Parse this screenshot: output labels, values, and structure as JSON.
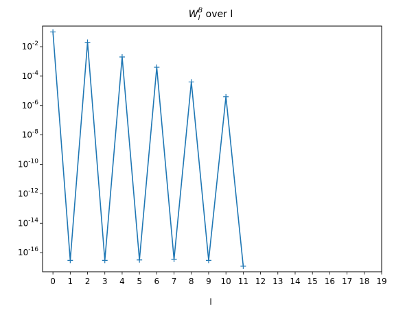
{
  "chart_data": {
    "type": "line",
    "title": {
      "main": "W",
      "sub": "l",
      "sup": "B",
      "rest": " over l"
    },
    "xlabel": "l",
    "ylabel": "",
    "xlim": [
      -0.6,
      19.0
    ],
    "ylim_exponent": [
      -17.3,
      -0.6
    ],
    "y_scale": "log",
    "grid": false,
    "marker": "+",
    "line_color": "#1f77b4",
    "x_ticks": [
      0,
      1,
      2,
      3,
      4,
      5,
      6,
      7,
      8,
      9,
      10,
      11,
      12,
      13,
      14,
      15,
      16,
      17,
      18,
      19
    ],
    "y_tick_exponents": [
      "-2",
      "-4",
      "-6",
      "-8",
      "-10",
      "-12",
      "-14",
      "-16"
    ],
    "y_tick_base": "10",
    "series": [
      {
        "x": [
          0,
          1,
          2,
          3,
          4,
          5,
          6,
          7,
          8,
          9,
          10,
          11
        ],
        "y": [
          0.1,
          3e-17,
          0.02,
          3e-17,
          0.002,
          3.2e-17,
          0.0004,
          3.5e-17,
          4e-05,
          3e-17,
          4e-06,
          1.2e-17
        ]
      }
    ]
  }
}
